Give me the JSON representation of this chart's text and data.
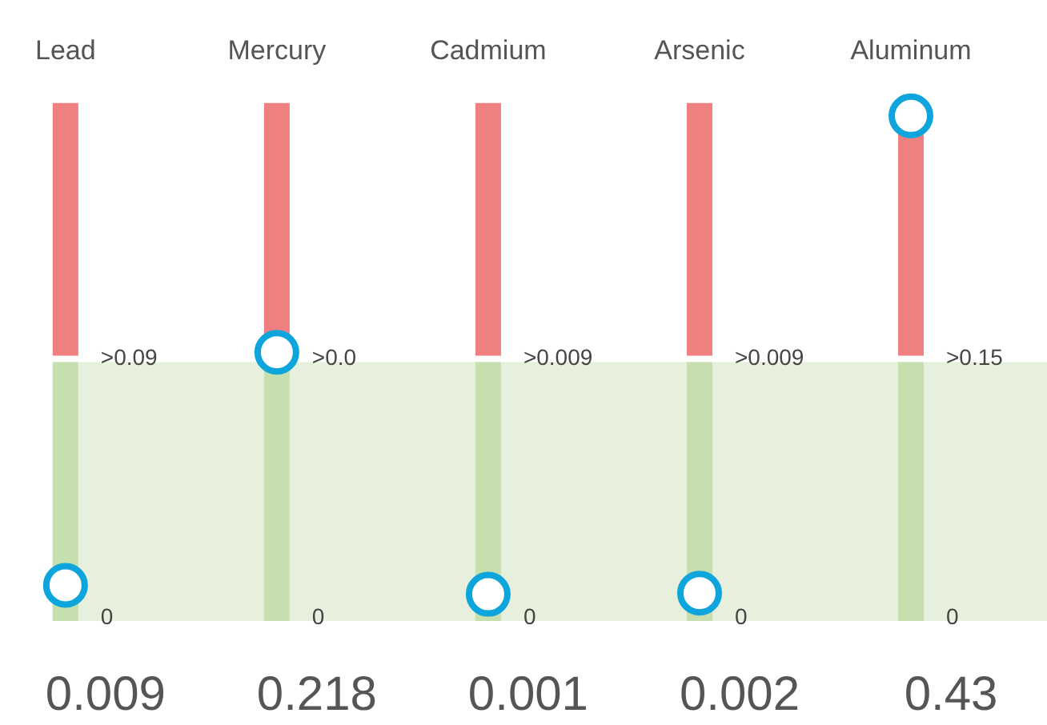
{
  "chart_data": {
    "type": "other",
    "data_labels": true,
    "categories": [
      "Lead",
      "Mercury",
      "Cadmium",
      "Arsenic",
      "Aluminum"
    ],
    "series": [
      {
        "color": "#0ea5dc",
        "values": [
          0.009,
          0.218,
          0.001,
          0.002,
          0.43
        ]
      }
    ],
    "annotations": [
      {
        "text": ">0.09",
        "x": "Lead"
      },
      {
        "text": "0",
        "x": "Lead"
      },
      {
        "text": ">0.0",
        "x": "Mercury"
      },
      {
        "text": "0",
        "x": "Mercury"
      },
      {
        "text": ">0.009",
        "x": "Cadmium"
      },
      {
        "text": "0",
        "x": "Cadmium"
      },
      {
        "text": ">0.009",
        "x": "Arsenic"
      },
      {
        "text": "0",
        "x": "Arsenic"
      },
      {
        "text": ">0.15",
        "x": "Aluminum"
      },
      {
        "text": "0",
        "x": "Aluminum"
      }
    ]
  }
}
